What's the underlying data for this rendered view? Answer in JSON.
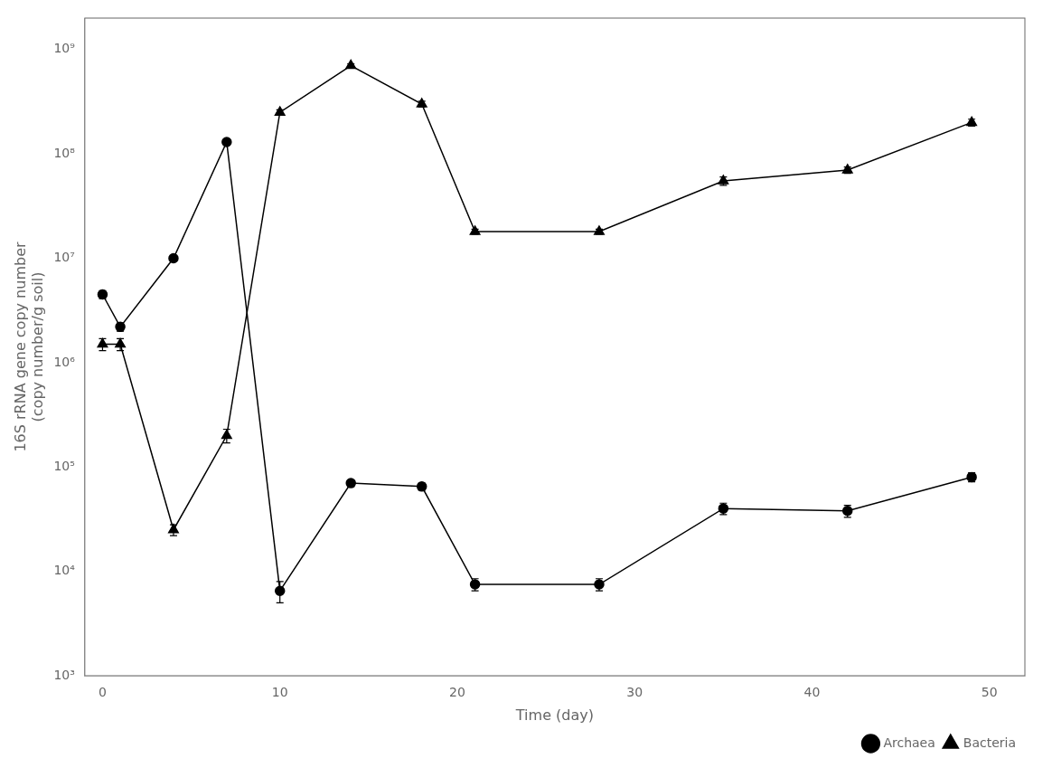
{
  "chart_data": {
    "type": "line",
    "xlabel": "Time (day)",
    "ylabel": "16S rRNA gene copy number\n(copy number/g soil)",
    "x": [
      0,
      1,
      4,
      7,
      10,
      14,
      18,
      21,
      28,
      35,
      42,
      49
    ],
    "series": [
      {
        "name": "Archaea",
        "color": "#000000",
        "marker": "circle",
        "values": [
          4500000,
          2200000,
          10000000,
          130000000,
          6500,
          70000,
          65000,
          7500,
          7500,
          40000,
          38000,
          80000
        ],
        "error_low": [
          400000,
          200000,
          400000,
          7000000,
          1500,
          5000,
          5000,
          1000,
          1000,
          5000,
          5000,
          8000
        ],
        "error_high": [
          400000,
          200000,
          400000,
          7000000,
          1500,
          5000,
          5000,
          1000,
          1000,
          5000,
          5000,
          8000
        ]
      },
      {
        "name": "Bacteria",
        "color": "#000000",
        "marker": "triangle",
        "values": [
          1500000,
          1500000,
          25000,
          200000,
          250000000,
          700000000,
          300000000,
          18000000,
          18000000,
          55000000,
          70000000,
          200000000
        ],
        "error_low": [
          200000,
          200000,
          3000,
          30000,
          15000000,
          30000000,
          20000000,
          1000000,
          1000000,
          5000000,
          5000000,
          15000000
        ],
        "error_high": [
          200000,
          200000,
          3000,
          30000,
          15000000,
          30000000,
          20000000,
          1000000,
          1000000,
          5000000,
          5000000,
          15000000
        ]
      }
    ],
    "xlim": [
      -1,
      52
    ],
    "xticks": [
      0,
      10,
      20,
      30,
      40,
      50
    ],
    "ylim": [
      1000,
      2000000000
    ],
    "yticks": [
      {
        "value": 1000,
        "label": "10³"
      },
      {
        "value": 10000,
        "label": "10⁴"
      },
      {
        "value": 100000,
        "label": "10⁵"
      },
      {
        "value": 1000000,
        "label": "10⁶"
      },
      {
        "value": 10000000,
        "label": "10⁷"
      },
      {
        "value": 100000000,
        "label": "10⁸"
      },
      {
        "value": 1000000000,
        "label": "10⁹"
      }
    ],
    "log": "y",
    "grid": false,
    "legend": "lower right"
  }
}
